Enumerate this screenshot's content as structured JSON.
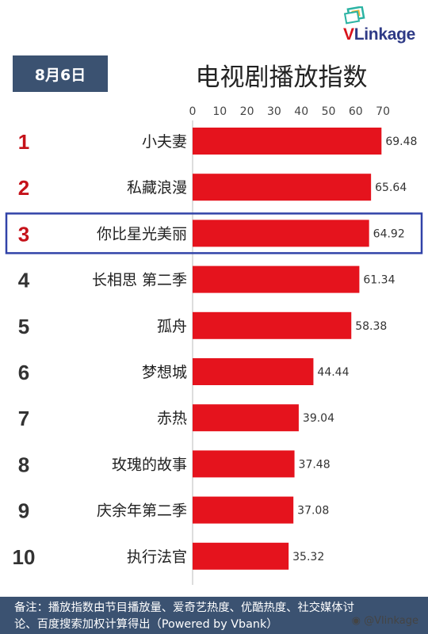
{
  "header": {
    "date": "8月6日",
    "title": "电视剧播放指数",
    "logo_text_v": "V",
    "logo_text_rest": "Linkage"
  },
  "chart_data": {
    "type": "bar",
    "orientation": "horizontal",
    "title": "电视剧播放指数",
    "xlim": [
      0,
      70
    ],
    "x_ticks": [
      0,
      10,
      20,
      30,
      40,
      50,
      60,
      70
    ],
    "ranks": [
      "1",
      "2",
      "3",
      "4",
      "5",
      "6",
      "7",
      "8",
      "9",
      "10"
    ],
    "categories": [
      "小夫妻",
      "私藏浪漫",
      "你比星光美丽",
      "长相思 第二季",
      "孤舟",
      "梦想城",
      "赤热",
      "玫瑰的故事",
      "庆余年第二季",
      "执行法官"
    ],
    "values": [
      69.48,
      65.64,
      64.92,
      61.34,
      58.38,
      44.44,
      39.04,
      37.48,
      37.08,
      35.32
    ],
    "value_labels": [
      "69.48",
      "65.64",
      "64.92",
      "61.34",
      "58.38",
      "44.44",
      "39.04",
      "37.48",
      "37.08",
      "35.32"
    ],
    "highlighted_rank": "3",
    "colors": {
      "bar": "#e5131d",
      "rank_top3": "#c5121a",
      "rank_other": "#333333",
      "highlight_border": "#3143a8"
    }
  },
  "footer": {
    "note_line1": "备注：播放指数由节目播放量、爱奇艺热度、优酷热度、社交媒体讨",
    "note_line2": "论、百度搜索加权计算得出（Powered by Vbank）",
    "weibo": "@Vlinkage"
  }
}
